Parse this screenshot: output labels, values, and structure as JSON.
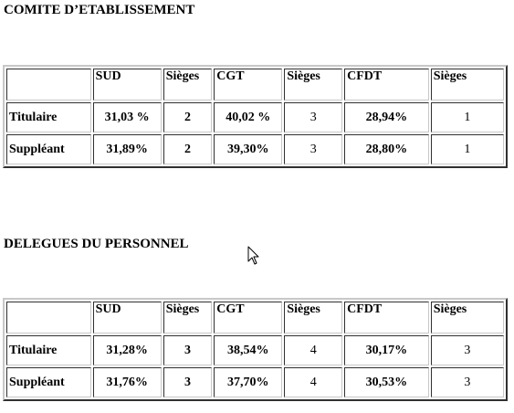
{
  "comite": {
    "title": "COMITE D’ETABLISSEMENT",
    "headers": [
      "",
      "SUD",
      "Sièges",
      "CGT",
      "Sièges",
      "CFDT",
      "Sièges"
    ],
    "rows": [
      {
        "label": "Titulaire",
        "sud": "31,03 %",
        "sud_sieges": "2",
        "cgt": "40,02 %",
        "cgt_sieges": "3",
        "cfdt": "28,94%",
        "cfdt_sieges": "1"
      },
      {
        "label": "Suppléant",
        "sud": "31,89%",
        "sud_sieges": "2",
        "cgt": "39,30%",
        "cgt_sieges": "3",
        "cfdt": "28,80%",
        "cfdt_sieges": "1"
      }
    ]
  },
  "delegues": {
    "title": "DELEGUES DU PERSONNEL",
    "headers": [
      "",
      "SUD",
      "Sièges",
      "CGT",
      "Sièges",
      "CFDT",
      "Sièges"
    ],
    "rows": [
      {
        "label": "Titulaire",
        "sud": "31,28%",
        "sud_sieges": "3",
        "cgt": "38,54%",
        "cgt_sieges": "4",
        "cfdt": "30,17%",
        "cfdt_sieges": "3"
      },
      {
        "label": "Suppléant",
        "sud": "31,76%",
        "sud_sieges": "3",
        "cgt": "37,70%",
        "cgt_sieges": "4",
        "cfdt": "30,53%",
        "cfdt_sieges": "3"
      }
    ]
  },
  "cursor_icon": "arrow-pointer-icon"
}
